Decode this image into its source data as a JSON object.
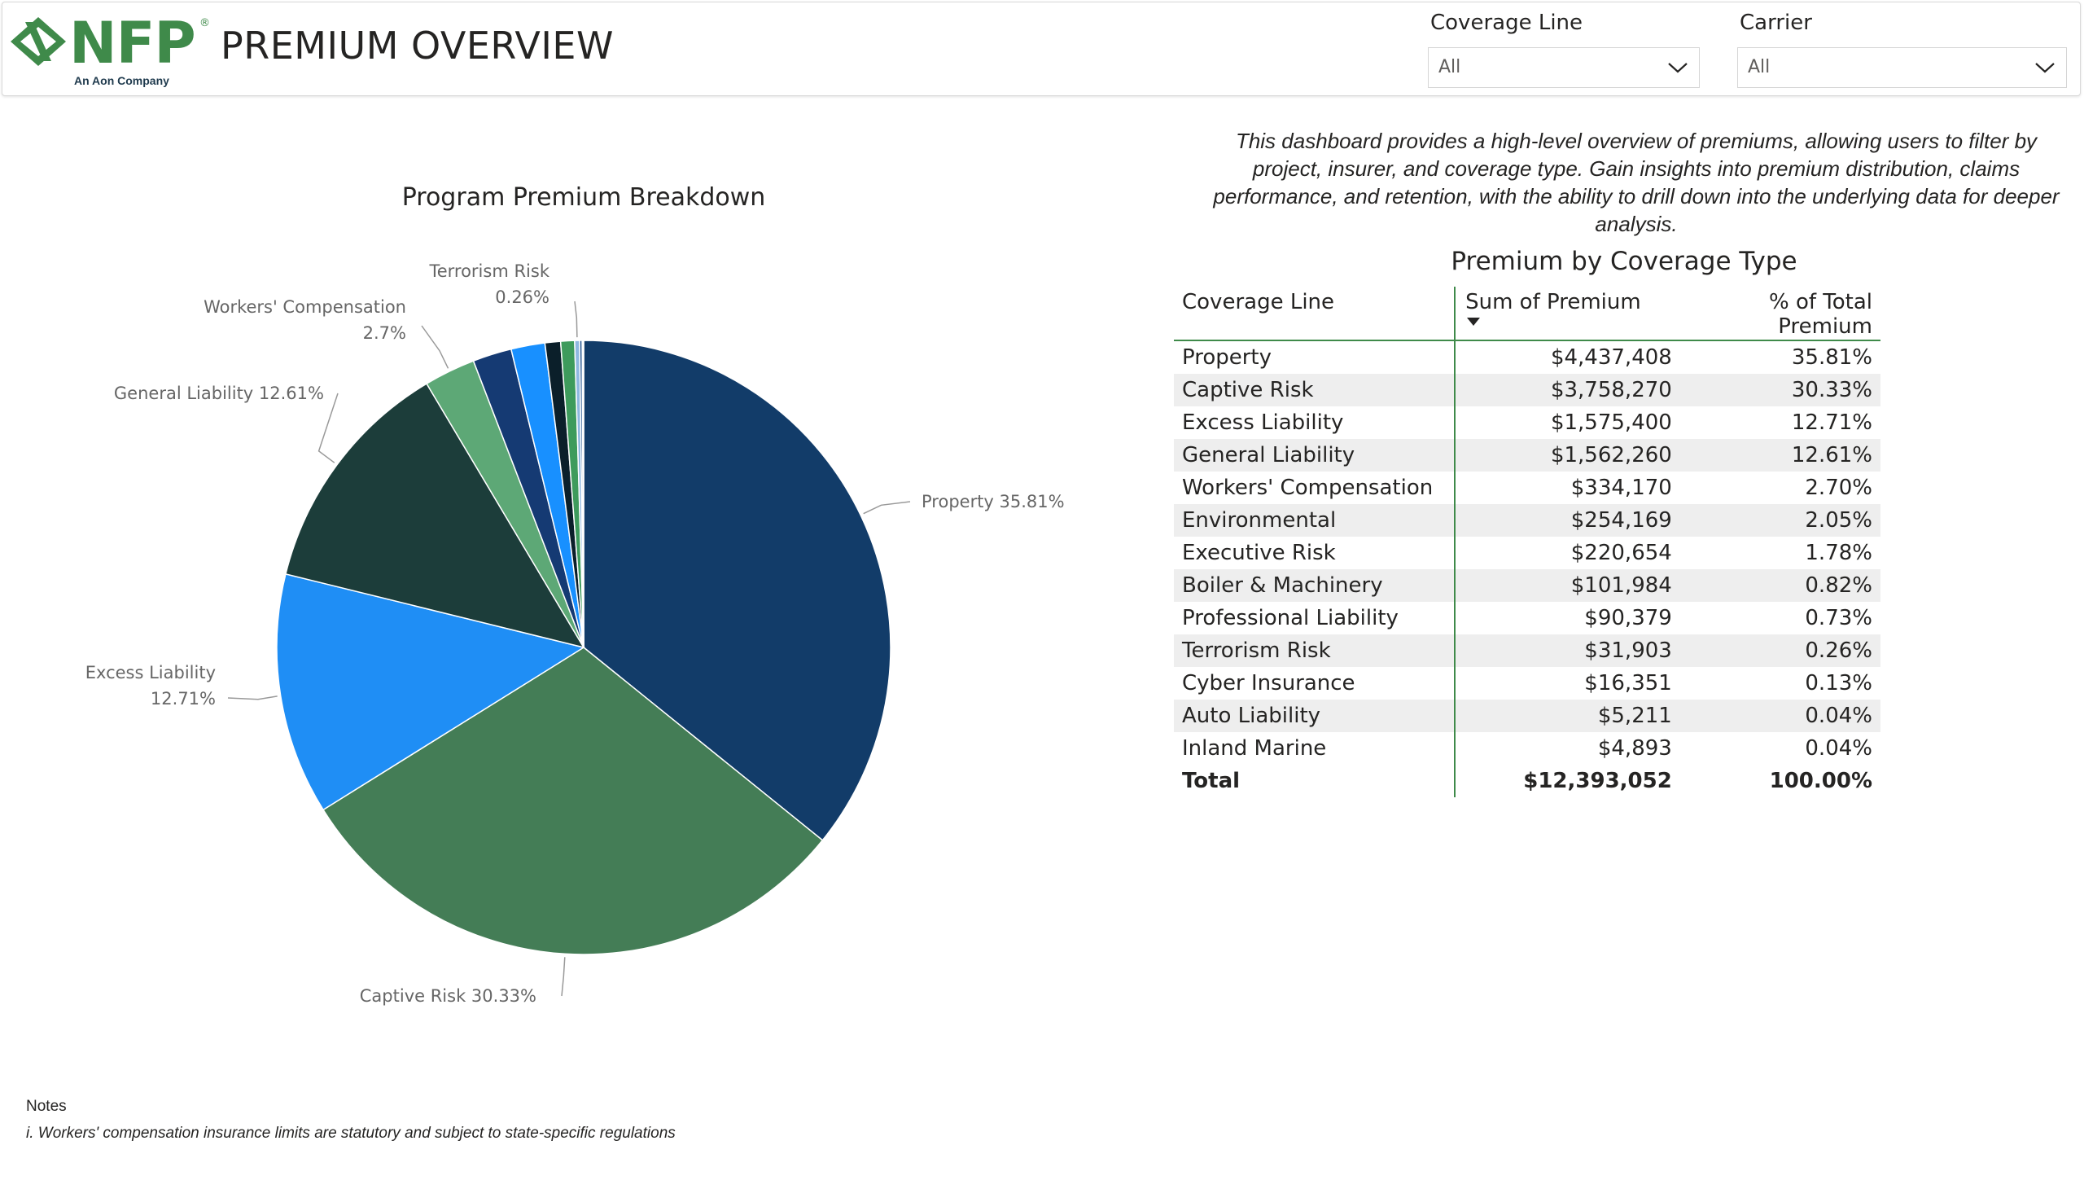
{
  "header": {
    "logo_text": "NFP",
    "logo_reg": "®",
    "logo_tagline": "An Aon Company",
    "title": "PREMIUM OVERVIEW"
  },
  "filters": {
    "coverage_line": {
      "label": "Coverage Line",
      "value": "All"
    },
    "carrier": {
      "label": "Carrier",
      "value": "All"
    }
  },
  "description": "This dashboard provides a high-level overview of premiums, allowing users to filter by project, insurer, and coverage type. Gain insights into premium distribution, claims performance, and retention, with the ability to drill down into the underlying data for deeper analysis.",
  "pie_chart": {
    "title": "Program Premium Breakdown"
  },
  "chart_data": {
    "type": "pie",
    "title": "Program Premium Breakdown",
    "slices": [
      {
        "name": "Property",
        "value": 35.81,
        "color": "#123c69",
        "label": "Property 35.81%"
      },
      {
        "name": "Captive Risk",
        "value": 30.33,
        "color": "#447d56",
        "label": "Captive Risk 30.33%"
      },
      {
        "name": "Excess Liability",
        "value": 12.71,
        "color": "#1f8ef5",
        "label_lines": [
          "Excess Liability",
          "12.71%"
        ]
      },
      {
        "name": "General Liability",
        "value": 12.61,
        "color": "#1c3d3a",
        "label": "General Liability 12.61%"
      },
      {
        "name": "Workers' Compensation",
        "value": 2.7,
        "color": "#5da876",
        "label_lines": [
          "Workers' Compensation",
          "2.7%"
        ]
      },
      {
        "name": "Environmental",
        "value": 2.05,
        "color": "#153a73"
      },
      {
        "name": "Executive Risk",
        "value": 1.78,
        "color": "#1890ff"
      },
      {
        "name": "Boiler & Machinery",
        "value": 0.82,
        "color": "#0b1f2a"
      },
      {
        "name": "Professional Liability",
        "value": 0.73,
        "color": "#3e9b5c"
      },
      {
        "name": "Terrorism Risk",
        "value": 0.26,
        "color": "#8fb8e0",
        "label_lines": [
          "Terrorism Risk",
          "0.26%"
        ]
      },
      {
        "name": "Cyber Insurance",
        "value": 0.13,
        "color": "#1a4d8c"
      },
      {
        "name": "Auto Liability",
        "value": 0.04,
        "color": "#66c2a5"
      },
      {
        "name": "Inland Marine",
        "value": 0.04,
        "color": "#204060"
      }
    ]
  },
  "table": {
    "title": "Premium by Coverage Type",
    "headers": [
      "Coverage Line",
      "Sum of Premium",
      "% of Total Premium"
    ],
    "rows": [
      [
        "Property",
        "$4,437,408",
        "35.81%"
      ],
      [
        "Captive Risk",
        "$3,758,270",
        "30.33%"
      ],
      [
        "Excess Liability",
        "$1,575,400",
        "12.71%"
      ],
      [
        "General Liability",
        "$1,562,260",
        "12.61%"
      ],
      [
        "Workers' Compensation",
        "$334,170",
        "2.70%"
      ],
      [
        "Environmental",
        "$254,169",
        "2.05%"
      ],
      [
        "Executive Risk",
        "$220,654",
        "1.78%"
      ],
      [
        "Boiler & Machinery",
        "$101,984",
        "0.82%"
      ],
      [
        "Professional Liability",
        "$90,379",
        "0.73%"
      ],
      [
        "Terrorism Risk",
        "$31,903",
        "0.26%"
      ],
      [
        "Cyber Insurance",
        "$16,351",
        "0.13%"
      ],
      [
        "Auto Liability",
        "$5,211",
        "0.04%"
      ],
      [
        "Inland Marine",
        "$4,893",
        "0.04%"
      ]
    ],
    "total": [
      "Total",
      "$12,393,052",
      "100.00%"
    ]
  },
  "notes": {
    "title": "Notes",
    "text": "i. Workers' compensation insurance limits are statutory and subject to state-specific regulations"
  }
}
